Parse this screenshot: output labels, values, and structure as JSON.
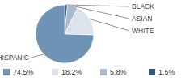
{
  "chart_data": {
    "type": "pie",
    "categories": [
      "HISPANIC",
      "WHITE",
      "ASIAN",
      "BLACK"
    ],
    "values": [
      74.5,
      18.2,
      5.8,
      1.5
    ],
    "value_labels": [
      "74.5%",
      "18.2%",
      "5.8%",
      "1.5%"
    ],
    "colors": [
      "#6f93b4",
      "#dce3ec",
      "#a7bad0",
      "#2f5a80"
    ],
    "legend": "bottom"
  }
}
